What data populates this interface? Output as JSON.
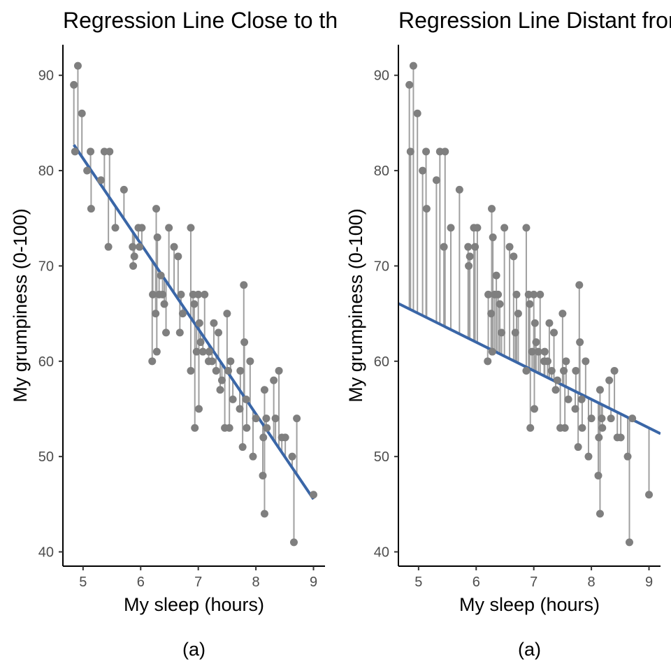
{
  "chart_data": [
    {
      "type": "scatter",
      "title": "Regression Line Close to the Data",
      "xlabel": "My sleep (hours)",
      "ylabel": "My grumpiness (0-100)",
      "caption": "(a)",
      "xlim": [
        4.65,
        9.2
      ],
      "ylim": [
        38.5,
        93.5
      ],
      "xticks": [
        5,
        6,
        7,
        8,
        9
      ],
      "yticks": [
        40,
        50,
        60,
        70,
        80,
        90
      ],
      "grid": false,
      "regression_line": {
        "intercept": 125.96,
        "slope": -8.937
      },
      "residual_segments": true,
      "points": {
        "x": [
          4.84,
          4.86,
          4.91,
          4.98,
          5.07,
          5.13,
          5.14,
          5.31,
          5.37,
          5.44,
          5.46,
          5.56,
          5.71,
          5.86,
          5.87,
          5.89,
          5.96,
          5.98,
          6.02,
          6.2,
          6.21,
          6.26,
          6.27,
          6.28,
          6.29,
          6.32,
          6.35,
          6.38,
          6.41,
          6.44,
          6.49,
          6.58,
          6.65,
          6.68,
          6.7,
          6.73,
          6.87,
          6.87,
          6.91,
          6.93,
          6.94,
          6.97,
          7.0,
          7.01,
          7.02,
          7.04,
          7.08,
          7.11,
          7.18,
          7.19,
          7.24,
          7.27,
          7.31,
          7.35,
          7.38,
          7.41,
          7.46,
          7.5,
          7.52,
          7.54,
          7.56,
          7.6,
          7.72,
          7.73,
          7.77,
          7.79,
          7.8,
          7.83,
          7.84,
          7.9,
          7.95,
          8.0,
          8.12,
          8.13,
          8.15,
          8.15,
          8.18,
          8.19,
          8.31,
          8.34,
          8.4,
          8.45,
          8.51,
          8.63,
          8.66,
          8.71,
          9.0
        ],
        "y": [
          89,
          82,
          91,
          86,
          80,
          82,
          76,
          79,
          82,
          72,
          82,
          74,
          78,
          72,
          70,
          71,
          74,
          72,
          74,
          60,
          67,
          65,
          76,
          61,
          73,
          67,
          69,
          67,
          66,
          63,
          74,
          72,
          71,
          63,
          67,
          65,
          74,
          59,
          67,
          66,
          53,
          61,
          67,
          55,
          64,
          62,
          61,
          67,
          60,
          61,
          60,
          64,
          59,
          63,
          57,
          58,
          53,
          65,
          59,
          53,
          60,
          56,
          55,
          59,
          51,
          68,
          62,
          56,
          53,
          60,
          50,
          54,
          48,
          52,
          44,
          57,
          54,
          53,
          58,
          54,
          59,
          52,
          52,
          50,
          41,
          54,
          46
        ]
      }
    },
    {
      "type": "scatter",
      "title": "Regression Line Distant from the Data",
      "xlabel": "My sleep (hours)",
      "ylabel": "My grumpiness (0-100)",
      "caption": "(a)",
      "xlim": [
        4.65,
        9.2
      ],
      "ylim": [
        38.5,
        93.5
      ],
      "xticks": [
        5,
        6,
        7,
        8,
        9
      ],
      "yticks": [
        40,
        50,
        60,
        70,
        80,
        90
      ],
      "grid": false,
      "regression_line": {
        "intercept": 80,
        "slope": -3.0
      },
      "residual_segments": true,
      "points": {
        "x": [
          4.84,
          4.86,
          4.91,
          4.98,
          5.07,
          5.13,
          5.14,
          5.31,
          5.37,
          5.44,
          5.46,
          5.56,
          5.71,
          5.86,
          5.87,
          5.89,
          5.96,
          5.98,
          6.02,
          6.2,
          6.21,
          6.26,
          6.27,
          6.28,
          6.29,
          6.32,
          6.35,
          6.38,
          6.41,
          6.44,
          6.49,
          6.58,
          6.65,
          6.68,
          6.7,
          6.73,
          6.87,
          6.87,
          6.91,
          6.93,
          6.94,
          6.97,
          7.0,
          7.01,
          7.02,
          7.04,
          7.08,
          7.11,
          7.18,
          7.19,
          7.24,
          7.27,
          7.31,
          7.35,
          7.38,
          7.41,
          7.46,
          7.5,
          7.52,
          7.54,
          7.56,
          7.6,
          7.72,
          7.73,
          7.77,
          7.79,
          7.8,
          7.83,
          7.84,
          7.9,
          7.95,
          8.0,
          8.12,
          8.13,
          8.15,
          8.15,
          8.18,
          8.19,
          8.31,
          8.34,
          8.4,
          8.45,
          8.51,
          8.63,
          8.66,
          8.71,
          9.0
        ],
        "y": [
          89,
          82,
          91,
          86,
          80,
          82,
          76,
          79,
          82,
          72,
          82,
          74,
          78,
          72,
          70,
          71,
          74,
          72,
          74,
          60,
          67,
          65,
          76,
          61,
          73,
          67,
          69,
          67,
          66,
          63,
          74,
          72,
          71,
          63,
          67,
          65,
          74,
          59,
          67,
          66,
          53,
          61,
          67,
          55,
          64,
          62,
          61,
          67,
          60,
          61,
          60,
          64,
          59,
          63,
          57,
          58,
          53,
          65,
          59,
          53,
          60,
          56,
          55,
          59,
          51,
          68,
          62,
          56,
          53,
          60,
          50,
          54,
          48,
          52,
          44,
          57,
          54,
          53,
          58,
          54,
          59,
          52,
          52,
          50,
          41,
          54,
          46
        ]
      }
    }
  ],
  "colors": {
    "points": "#7f7f7f",
    "segments": "#a0a0a0",
    "regression": "#3a66a7",
    "axis": "#000000",
    "tick_label": "#4d4d4d"
  }
}
